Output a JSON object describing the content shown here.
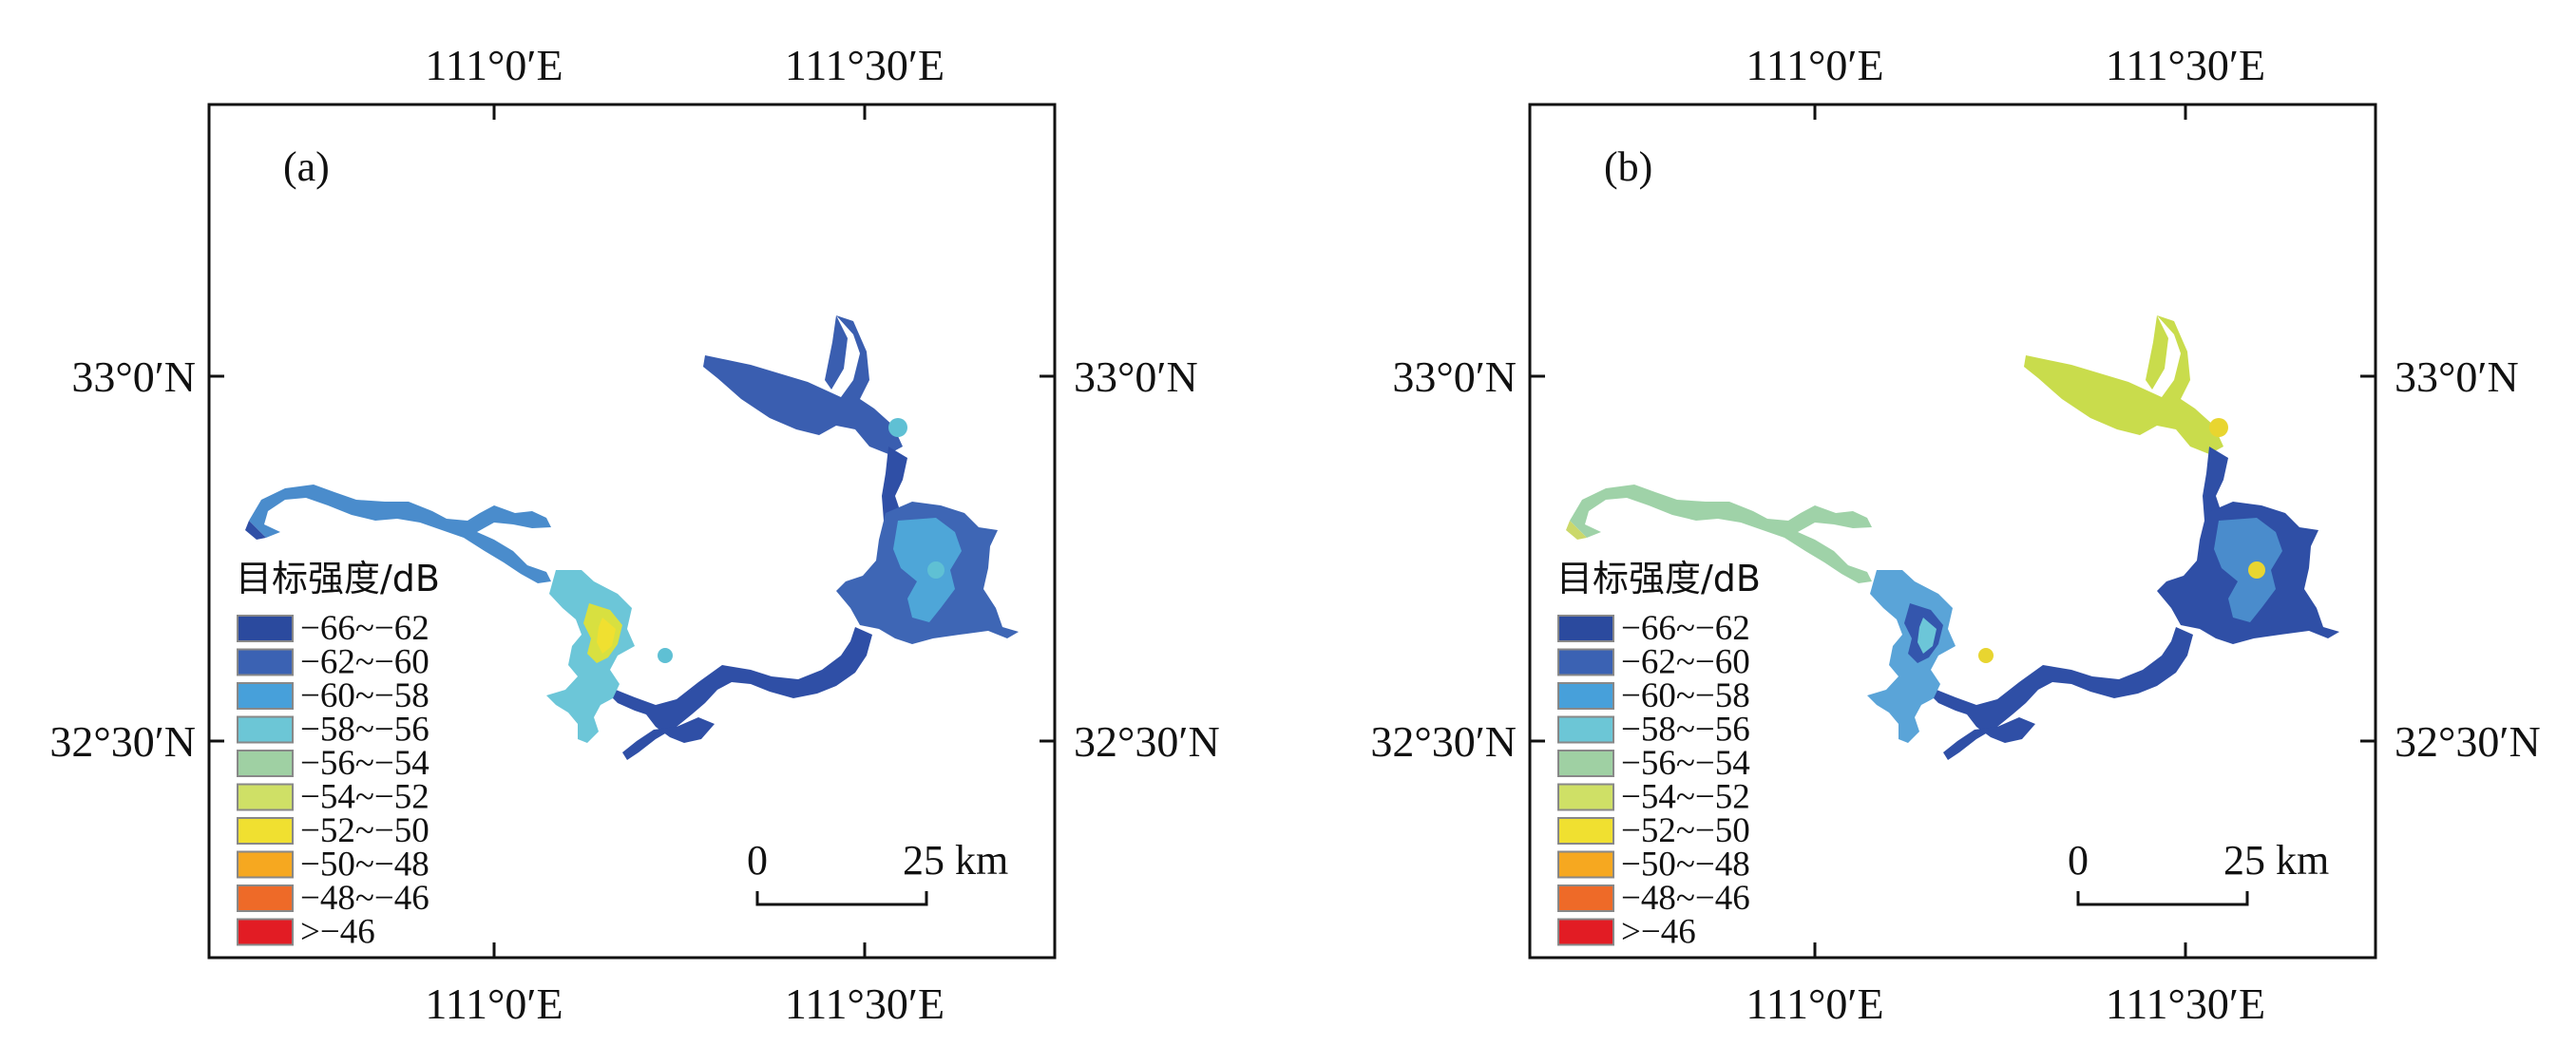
{
  "panels": [
    {
      "label": "(a)",
      "lon_ticks_top": [
        "111°0′E",
        "111°30′E"
      ],
      "lon_ticks_bottom": [
        "111°0′E",
        "111°30′E"
      ],
      "lat_ticks_left": [
        "33°0′N",
        "32°30′N"
      ],
      "lat_ticks_right": [
        "33°0′N",
        "32°30′N"
      ],
      "fill": {
        "north_arm": "#3a5eb0",
        "east_basin": "#3e66b5",
        "east_basin_inner": "#4ea6d8",
        "south_channel": "#2f4fa6",
        "west_river": "#4a8ccc",
        "west_river_tail": "#2f4fa6",
        "middle_lake": "#6cc6d8",
        "middle_core": "#d8e040",
        "middle_core2": "#f0e030",
        "spots": "#5fc0d4"
      }
    },
    {
      "label": "(b)",
      "lon_ticks_top": [
        "111°0′E",
        "111°30′E"
      ],
      "lon_ticks_bottom": [
        "111°0′E",
        "111°30′E"
      ],
      "lat_ticks_left": [
        "33°0′N",
        "32°30′N"
      ],
      "lat_ticks_right": [
        "33°0′N",
        "32°30′N"
      ],
      "fill": {
        "north_arm": "#c9dc4c",
        "east_basin": "#2f4fa6",
        "east_basin_inner": "#4a8ccc",
        "south_channel": "#2f4fa6",
        "west_river": "#9fd2a8",
        "west_river_tail": "#cbd86a",
        "middle_lake": "#5aa4d8",
        "middle_core": "#3456ad",
        "middle_core2": "#6cc6d8",
        "spots": "#e8d530"
      }
    }
  ],
  "legend": {
    "title": "目标强度/dB",
    "items": [
      {
        "label": "−66~−62",
        "color": "#2b4a9e"
      },
      {
        "label": "−62~−60",
        "color": "#3b62b3"
      },
      {
        "label": "−60~−58",
        "color": "#47a0da"
      },
      {
        "label": "−58~−56",
        "color": "#6cc6d6"
      },
      {
        "label": "−56~−54",
        "color": "#9fd0a3"
      },
      {
        "label": "−54~−52",
        "color": "#cfe066"
      },
      {
        "label": "−52~−50",
        "color": "#f0e030"
      },
      {
        "label": "−50~−48",
        "color": "#f6a820"
      },
      {
        "label": "−48~−46",
        "color": "#ee6a28"
      },
      {
        "label": ">−46",
        "color": "#e21c24"
      }
    ]
  },
  "scale_bar": {
    "start": "0",
    "end": "25 km"
  }
}
